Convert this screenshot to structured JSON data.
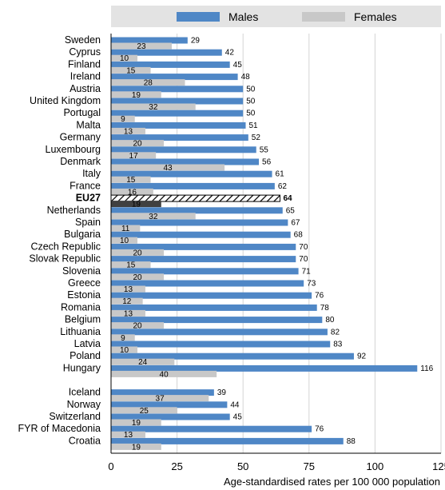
{
  "legend": {
    "position": "top",
    "males_label": "Males",
    "females_label": "Females"
  },
  "colors": {
    "males": "#4f87c6",
    "females": "#c8c8c8",
    "eu_females": "#404040",
    "eu_males_hatch": "#000000",
    "legend_bg": "#e3e3e3"
  },
  "chart_data": {
    "type": "bar",
    "orientation": "horizontal",
    "xlabel": "Age-standardised rates per 100 000 population",
    "xlim": [
      0,
      125
    ],
    "xticks": [
      0,
      25,
      50,
      75,
      100,
      125
    ],
    "grid": true,
    "series": [
      {
        "name": "Males",
        "values": [
          29,
          42,
          45,
          48,
          50,
          50,
          50,
          51,
          52,
          55,
          56,
          61,
          62,
          64,
          65,
          67,
          68,
          70,
          70,
          71,
          73,
          76,
          78,
          80,
          82,
          83,
          92,
          116,
          39,
          44,
          45,
          76,
          88
        ]
      },
      {
        "name": "Females",
        "values": [
          23,
          10,
          15,
          28,
          19,
          32,
          9,
          13,
          20,
          17,
          43,
          15,
          16,
          19,
          32,
          11,
          10,
          20,
          15,
          20,
          13,
          12,
          13,
          20,
          9,
          10,
          24,
          40,
          37,
          25,
          19,
          13,
          19
        ]
      }
    ],
    "categories": [
      "Sweden",
      "Cyprus",
      "Finland",
      "Ireland",
      "Austria",
      "United Kingdom",
      "Portugal",
      "Malta",
      "Germany",
      "Luxembourg",
      "Denmark",
      "Italy",
      "France",
      "EU27",
      "Netherlands",
      "Spain",
      "Bulgaria",
      "Czech Republic",
      "Slovak Republic",
      "Slovenia",
      "Greece",
      "Estonia",
      "Romania",
      "Belgium",
      "Lithuania",
      "Latvia",
      "Poland",
      "Hungary",
      "Iceland",
      "Norway",
      "Switzerland",
      "FYR of Macedonia",
      "Croatia"
    ],
    "highlight": "EU27"
  }
}
